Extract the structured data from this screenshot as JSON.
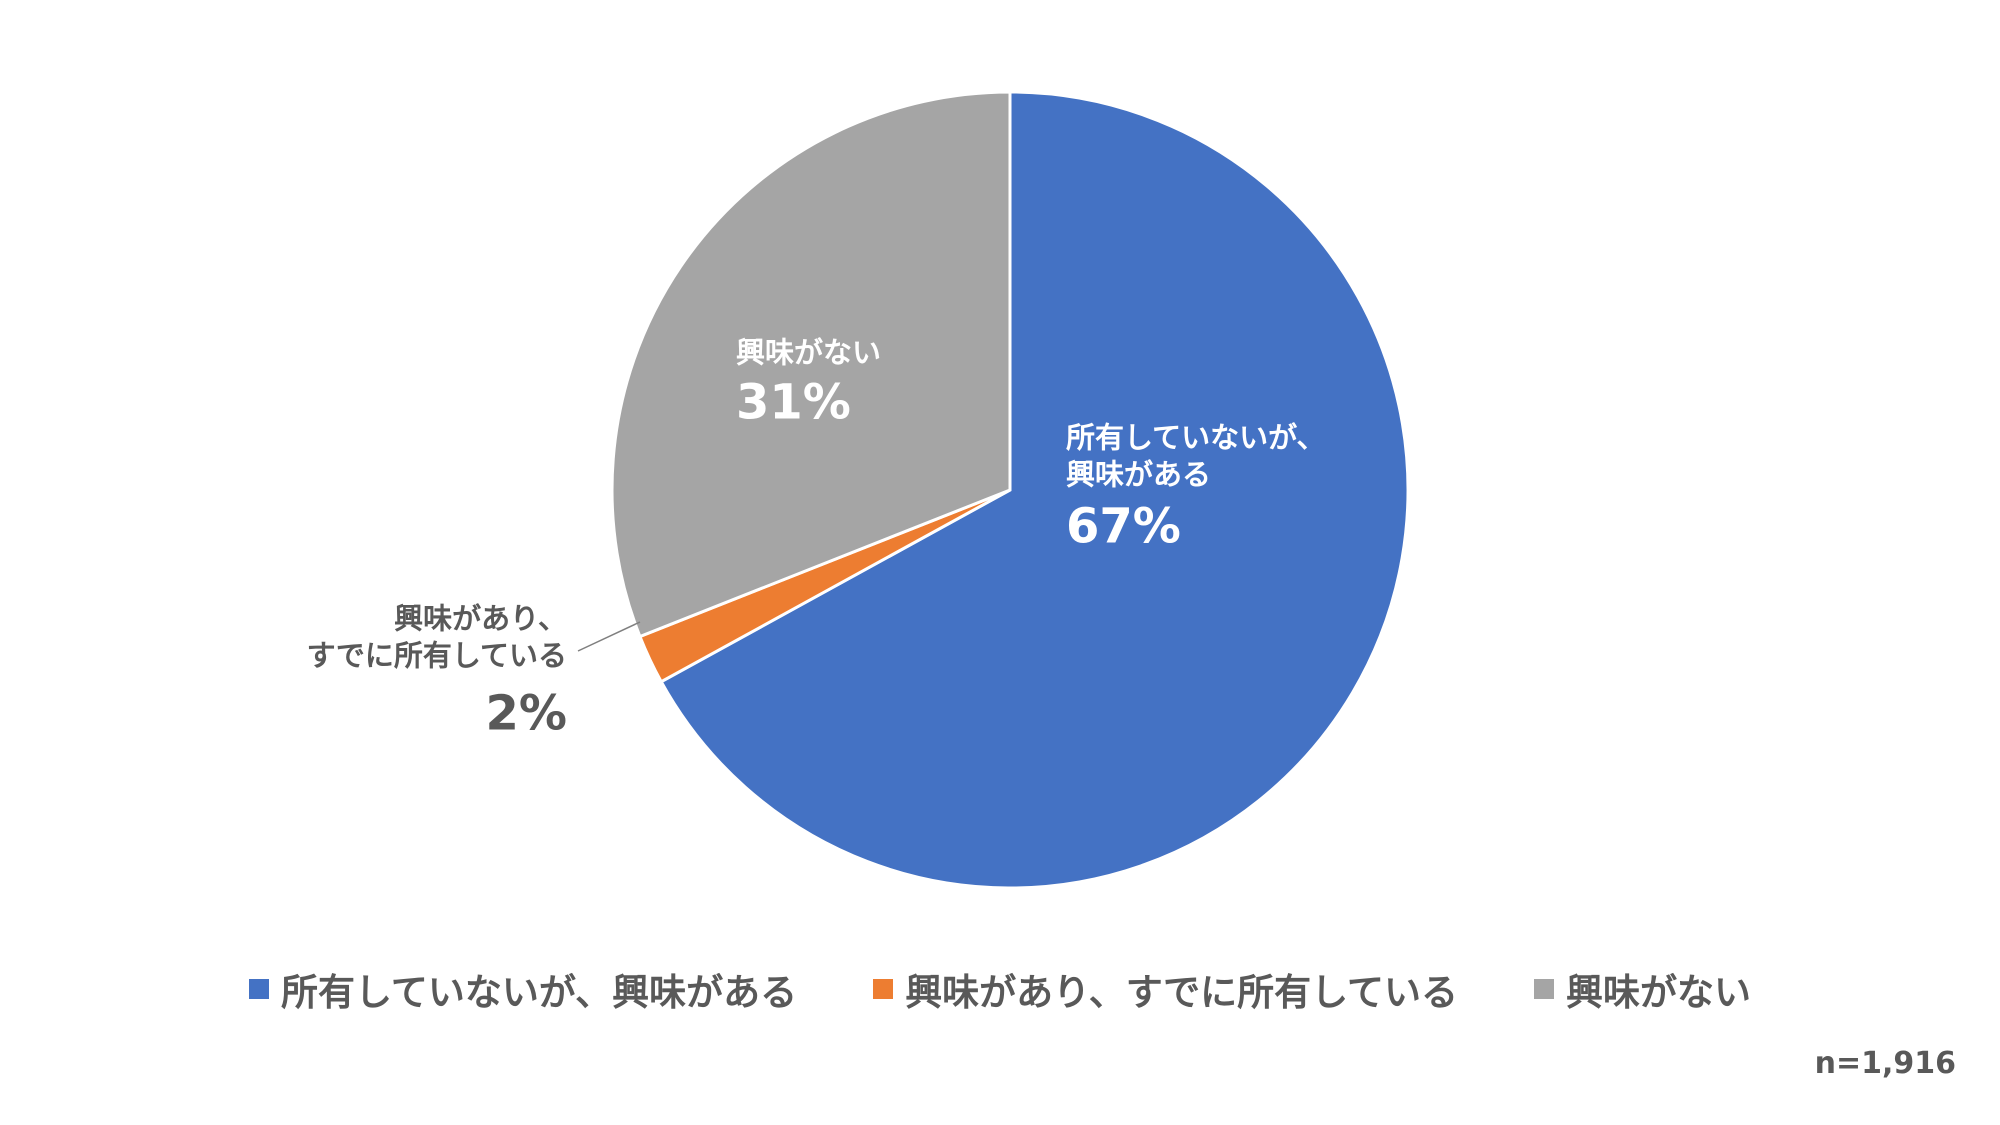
{
  "chart_data": {
    "type": "pie",
    "title": "",
    "start_angle_deg": 0,
    "direction": "clockwise",
    "slices": [
      {
        "name": "所有していないが、興味がある",
        "name_lines": [
          "所有していないが、",
          "興味がある"
        ],
        "value": 67,
        "label": "67%",
        "color": "#4472C4",
        "label_position": "inside"
      },
      {
        "name": "興味があり、すでに所有している",
        "name_lines": [
          "興味があり、",
          "すでに所有している"
        ],
        "value": 2,
        "label": "2%",
        "color": "#ED7D31",
        "label_position": "outside"
      },
      {
        "name": "興味がない",
        "name_lines": [
          "興味がない"
        ],
        "value": 31,
        "label": "31%",
        "color": "#A5A5A5",
        "label_position": "inside"
      }
    ],
    "legend": {
      "position": "bottom",
      "items": [
        {
          "label": "所有していないが、興味がある",
          "color": "#4472C4"
        },
        {
          "label": "興味があり、すでに所有している",
          "color": "#ED7D31"
        },
        {
          "label": "興味がない",
          "color": "#A5A5A5"
        }
      ]
    },
    "note": "n=1,916"
  }
}
